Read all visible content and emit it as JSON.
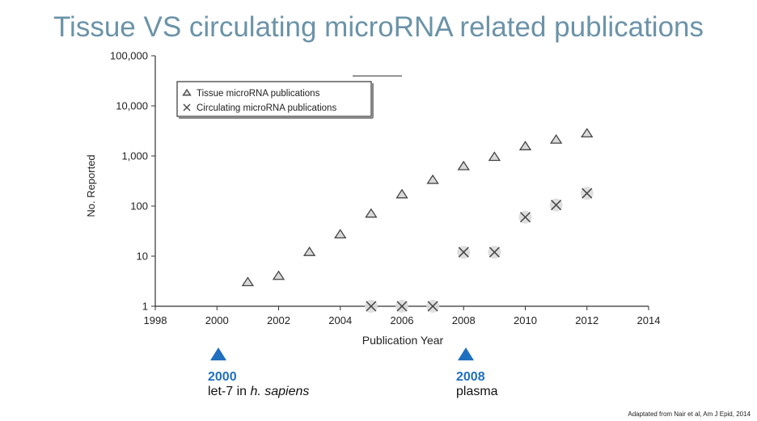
{
  "slide": {
    "title": "Tissue VS circulating microRNA related publications",
    "credit": "Adaptated from Nair et al, Am J Epid, 2014"
  },
  "annotations": [
    {
      "year": "2000",
      "text": "let-7 in ",
      "text_italic": "h. sapiens",
      "x_value": 2000
    },
    {
      "year": "2008",
      "text": "plasma",
      "text_italic": "",
      "x_value": 2008
    }
  ],
  "colors": {
    "title": "#6b93a8",
    "accent": "#1f6fbf",
    "marker": "#444444"
  },
  "chart_data": {
    "type": "scatter",
    "xlabel": "Publication Year",
    "ylabel": "No. Reported",
    "y_scale": "log",
    "xlim": [
      1998,
      2014
    ],
    "ylim": [
      1,
      100000
    ],
    "x_ticks": [
      1998,
      2000,
      2002,
      2004,
      2006,
      2008,
      2010,
      2012,
      2014
    ],
    "x_tick_labels": [
      "1998",
      "2000",
      "2002",
      "2004",
      "2006",
      "2008",
      "2010",
      "2012",
      "2014"
    ],
    "y_ticks": [
      1,
      10,
      100,
      1000,
      10000,
      100000
    ],
    "y_tick_labels": [
      "1",
      "10",
      "100",
      "1,000",
      "10,000",
      "100,000"
    ],
    "grid": false,
    "legend_position": "top-left",
    "series": [
      {
        "name": "Tissue microRNA publications",
        "marker": "triangle",
        "points": [
          {
            "x": 2001,
            "y": 3
          },
          {
            "x": 2002,
            "y": 4
          },
          {
            "x": 2003,
            "y": 12
          },
          {
            "x": 2004,
            "y": 27
          },
          {
            "x": 2005,
            "y": 70
          },
          {
            "x": 2006,
            "y": 170
          },
          {
            "x": 2007,
            "y": 330
          },
          {
            "x": 2008,
            "y": 620
          },
          {
            "x": 2009,
            "y": 950
          },
          {
            "x": 2010,
            "y": 1550
          },
          {
            "x": 2011,
            "y": 2100
          },
          {
            "x": 2012,
            "y": 2800
          }
        ]
      },
      {
        "name": "Circulating microRNA publications",
        "marker": "x",
        "points": [
          {
            "x": 2005,
            "y": 1
          },
          {
            "x": 2006,
            "y": 1
          },
          {
            "x": 2007,
            "y": 1
          },
          {
            "x": 2008,
            "y": 12
          },
          {
            "x": 2009,
            "y": 12
          },
          {
            "x": 2010,
            "y": 60
          },
          {
            "x": 2011,
            "y": 105
          },
          {
            "x": 2012,
            "y": 180
          }
        ]
      }
    ]
  }
}
